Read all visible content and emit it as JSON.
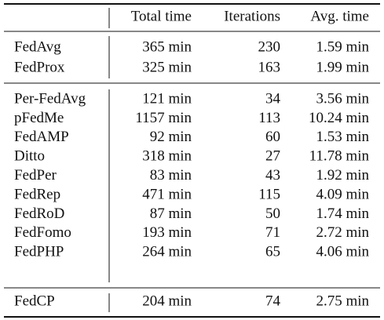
{
  "table": {
    "header": [
      "Total time",
      "Iterations",
      "Avg. time"
    ],
    "groups": [
      [
        [
          "FedAvg",
          "365 min",
          "230",
          "1.59 min"
        ],
        [
          "FedProx",
          "325 min",
          "163",
          "1.99 min"
        ]
      ],
      [
        [
          "Per-FedAvg",
          "121 min",
          "34",
          "3.56 min"
        ],
        [
          "pFedMe",
          "1157 min",
          "113",
          "10.24 min"
        ],
        [
          "FedAMP",
          "92 min",
          "60",
          "1.53 min"
        ],
        [
          "Ditto",
          "318 min",
          "27",
          "11.78 min"
        ],
        [
          "FedPer",
          "83 min",
          "43",
          "1.92 min"
        ],
        [
          "FedRep",
          "471 min",
          "115",
          "4.09 min"
        ],
        [
          "FedRoD",
          "87 min",
          "50",
          "1.74 min"
        ],
        [
          "FedFomo",
          "193 min",
          "71",
          "2.72 min"
        ],
        [
          "FedPHP",
          "264 min",
          "65",
          "4.06 min"
        ]
      ],
      [
        [
          "FedCP",
          "204 min",
          "74",
          "2.75 min"
        ]
      ]
    ]
  }
}
